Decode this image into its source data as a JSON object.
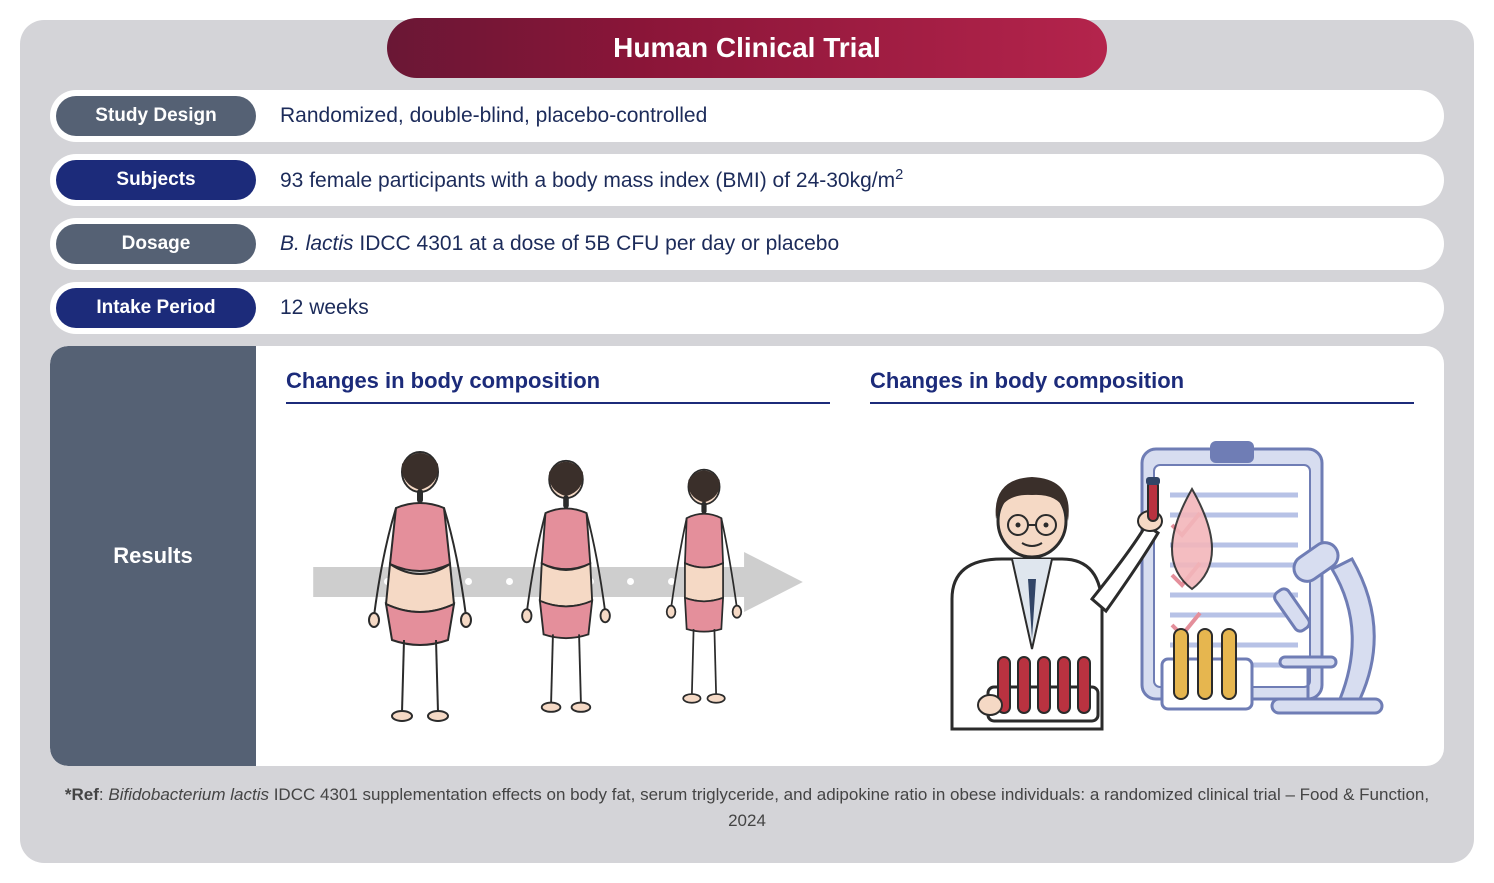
{
  "header": {
    "title": "Human Clinical Trial"
  },
  "colors": {
    "pill_grey": "#556174",
    "pill_navy": "#1c2b7a",
    "text_navy": "#1c2b5a",
    "card_bg": "#d4d4d8",
    "title_grad_from": "#6a1735",
    "title_grad_to": "#b4244c",
    "skin": "#f5d9c5",
    "garment": "#e48f9b",
    "hair": "#3a2f2a",
    "arrow": "#c9c9c9",
    "clipboard": "#b7c2e6",
    "droplet": "#f3b6bb",
    "tube_red": "#b93240",
    "tube_yellow": "#e6b64f"
  },
  "rows": {
    "study_design": {
      "label": "Study Design",
      "value": "Randomized, double-blind, placebo-controlled",
      "pill_color": "#556174"
    },
    "subjects": {
      "label": "Subjects",
      "value_html": "93 female participants with a body mass index (BMI) of 24-30kg/m<sup>2</sup>",
      "pill_color": "#1c2b7a"
    },
    "dosage": {
      "label": "Dosage",
      "value_html": "<em>B. lactis</em> IDCC 4301 at a dose of 5B CFU per day or placebo",
      "pill_color": "#556174"
    },
    "intake": {
      "label": "Intake Period",
      "value": "12 weeks",
      "pill_color": "#1c2b7a"
    }
  },
  "results": {
    "label": "Results",
    "panels": [
      {
        "title": "Changes in body composition"
      },
      {
        "title": "Changes in body composition"
      }
    ]
  },
  "reference": {
    "prefix": "*Ref",
    "text_html": "<em>Bifidobacterium lactis</em> IDCC 4301 supplementation effects on body fat, serum triglyceride, and adipokine ratio in obese individuals: a randomized clinical trial – Food & Function, 2024"
  }
}
